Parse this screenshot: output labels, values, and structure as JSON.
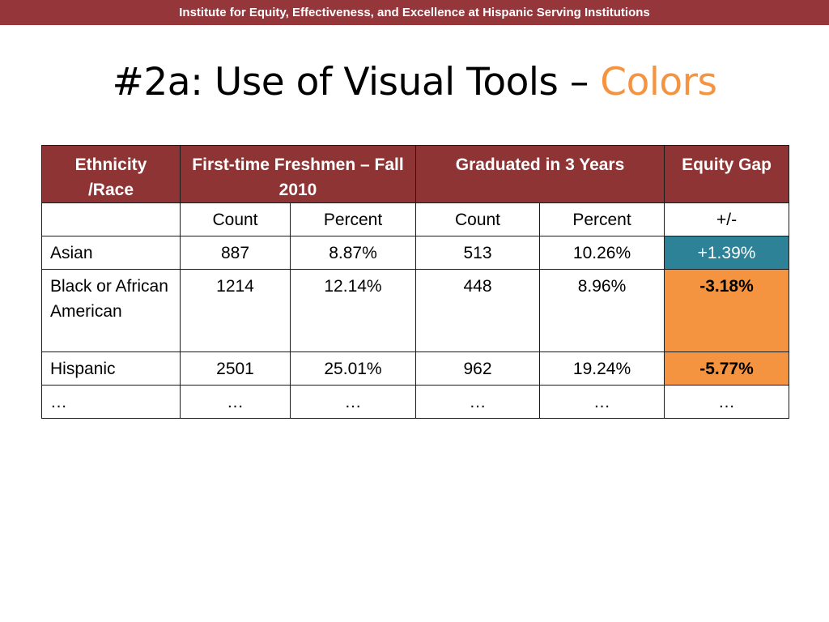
{
  "header": {
    "banner_text": "Institute for Equity, Effectiveness, and Excellence at Hispanic Serving Institutions"
  },
  "slide": {
    "title_main": "#2a: Use of Visual Tools – ",
    "title_accent": "Colors"
  },
  "table": {
    "headers": [
      "Ethnicity /Race",
      "First-time Freshmen – Fall 2010",
      "Graduated in 3 Years",
      "Equity Gap"
    ],
    "subheaders": [
      "",
      "Count",
      "Percent",
      "Count",
      "Percent",
      "+/-"
    ],
    "rows": [
      [
        "Asian",
        "887",
        "8.87%",
        "513",
        "10.26%",
        "+1.39%"
      ],
      [
        "Black or African American",
        "1214",
        "12.14%",
        "448",
        "8.96%",
        "-3.18%"
      ],
      [
        "Hispanic",
        "2501",
        "25.01%",
        "962",
        "19.24%",
        "-5.77%"
      ],
      [
        "…",
        "…",
        "…",
        "…",
        "…",
        "…"
      ]
    ]
  },
  "colors": {
    "banner": "#94363a",
    "header": "#8f3435",
    "positive_gap": "#2e8297",
    "negative_gap": "#f59440",
    "title_accent": "#f59440"
  }
}
